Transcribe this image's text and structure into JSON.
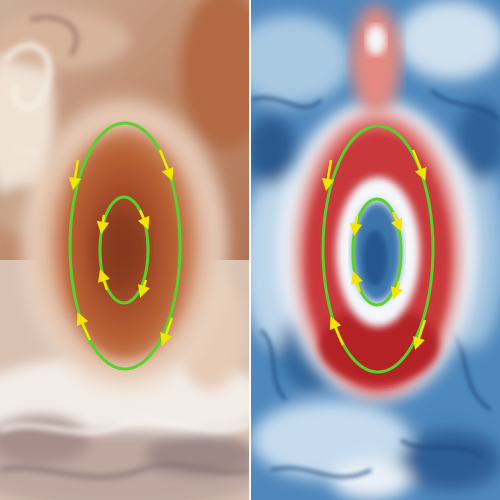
{
  "figure": {
    "panels": [
      {
        "name": "visible-image-panel",
        "style": "true-color"
      },
      {
        "name": "vorticity-map-panel",
        "style": "diverging-colormap"
      }
    ],
    "colors": {
      "contour": "#5ad12b",
      "arrow": "#f2e600",
      "grs_outer": "#b85e35",
      "grs_core": "#8e3d22",
      "map_red": "#c9383a",
      "map_blue": "#2f6ea5",
      "map_white": "#f4f7fb"
    },
    "icons": {
      "arrow": "flow-direction-arrow-icon"
    }
  }
}
